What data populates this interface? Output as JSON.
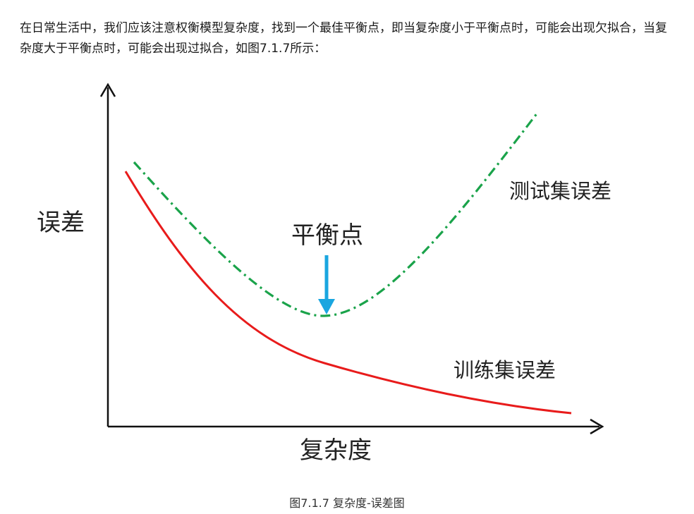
{
  "intro_text": "在日常生活中，我们应该注意权衡模型复杂度，找到一个最佳平衡点，即当复杂度小于平衡点时，可能会出现欠拟合，当复杂度大于平衡点时，可能会出现过拟合，如图7.1.7所示：",
  "figure": {
    "y_axis_label": "误差",
    "x_axis_label": "复杂度",
    "test_curve_label": "测试集误差",
    "train_curve_label": "训练集误差",
    "balance_point_label": "平衡点",
    "colors": {
      "test_curve": "#1aa34a",
      "train_curve": "#e81b1b",
      "arrow": "#1aa6e0",
      "axis": "#111111"
    }
  },
  "caption": "图7.1.7 复杂度-误差图"
}
